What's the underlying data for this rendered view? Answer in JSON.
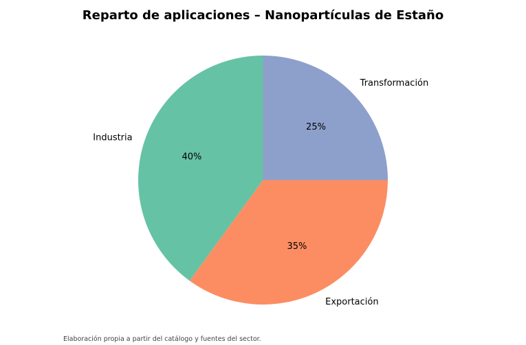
{
  "chart_data": {
    "type": "pie",
    "title": "Reparto de aplicaciones – Nanopartículas de Estaño",
    "start_angle_deg": 90,
    "direction": "counterclockwise",
    "slices": [
      {
        "label": "Industria",
        "value": 40,
        "pct_label": "40%",
        "color": "#66c2a5"
      },
      {
        "label": "Exportación",
        "value": 35,
        "pct_label": "35%",
        "color": "#fc8d62"
      },
      {
        "label": "Transformación",
        "value": 25,
        "pct_label": "25%",
        "color": "#8da0cb"
      }
    ]
  },
  "footnote": "Elaboración propia a partir del catálogo y fuentes del sector."
}
